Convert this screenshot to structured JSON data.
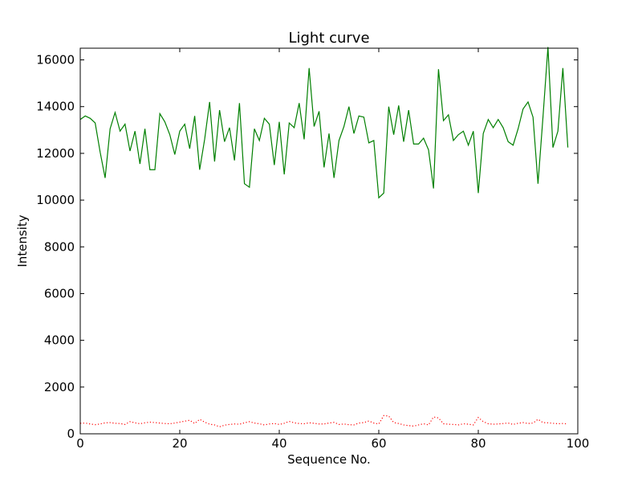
{
  "chart_data": {
    "type": "line",
    "title": "Light curve",
    "xlabel": "Sequence No.",
    "ylabel": "Intensity",
    "xlim": [
      0,
      100
    ],
    "ylim": [
      0,
      16500
    ],
    "xticks": [
      0,
      20,
      40,
      60,
      80,
      100
    ],
    "yticks": [
      0,
      2000,
      4000,
      6000,
      8000,
      10000,
      12000,
      14000,
      16000
    ],
    "grid": false,
    "legend": "none",
    "x": [
      0,
      1,
      2,
      3,
      4,
      5,
      6,
      7,
      8,
      9,
      10,
      11,
      12,
      13,
      14,
      15,
      16,
      17,
      18,
      19,
      20,
      21,
      22,
      23,
      24,
      25,
      26,
      27,
      28,
      29,
      30,
      31,
      32,
      33,
      34,
      35,
      36,
      37,
      38,
      39,
      40,
      41,
      42,
      43,
      44,
      45,
      46,
      47,
      48,
      49,
      50,
      51,
      52,
      53,
      54,
      55,
      56,
      57,
      58,
      59,
      60,
      61,
      62,
      63,
      64,
      65,
      66,
      67,
      68,
      69,
      70,
      71,
      72,
      73,
      74,
      75,
      76,
      77,
      78,
      79,
      80,
      81,
      82,
      83,
      84,
      85,
      86,
      87,
      88,
      89,
      90,
      91,
      92,
      93,
      94,
      95,
      96,
      97,
      98
    ],
    "series": [
      {
        "color": "#007f00",
        "style": "solid",
        "values": [
          13450,
          13600,
          13500,
          13300,
          12050,
          10950,
          13050,
          13750,
          12950,
          13250,
          12100,
          12950,
          11550,
          13050,
          11300,
          11300,
          13700,
          13350,
          12800,
          11950,
          12950,
          13250,
          12200,
          13600,
          11300,
          12600,
          14200,
          11650,
          13850,
          12500,
          13100,
          11700,
          14150,
          10700,
          10550,
          13050,
          12550,
          13500,
          13250,
          11500,
          13350,
          11100,
          13300,
          13100,
          14150,
          12600,
          15650,
          13150,
          13800,
          11400,
          12850,
          10950,
          12550,
          13150,
          14000,
          12850,
          13600,
          13550,
          12450,
          12550,
          10100,
          10300,
          14000,
          12800,
          14050,
          12500,
          13850,
          12400,
          12400,
          12650,
          12150,
          10500,
          15600,
          13400,
          13650,
          12550,
          12800,
          12950,
          12350,
          12950,
          10300,
          12850,
          13450,
          13100,
          13450,
          13100,
          12500,
          12350,
          13050,
          13900,
          14200,
          13550,
          10700,
          13550,
          16550,
          12250,
          12950,
          15650,
          12250
        ]
      },
      {
        "color": "#ff0000",
        "style": "dotted",
        "values": [
          450,
          460,
          420,
          390,
          420,
          470,
          480,
          450,
          440,
          400,
          520,
          470,
          430,
          470,
          500,
          480,
          460,
          440,
          430,
          460,
          500,
          540,
          580,
          440,
          620,
          500,
          410,
          380,
          300,
          370,
          400,
          420,
          410,
          470,
          520,
          460,
          430,
          380,
          420,
          440,
          400,
          450,
          530,
          470,
          440,
          430,
          470,
          450,
          420,
          420,
          460,
          490,
          400,
          420,
          390,
          380,
          460,
          480,
          550,
          460,
          420,
          780,
          760,
          480,
          440,
          380,
          350,
          330,
          380,
          430,
          380,
          720,
          680,
          430,
          410,
          400,
          380,
          430,
          410,
          380,
          700,
          520,
          430,
          410,
          420,
          440,
          460,
          400,
          450,
          480,
          440,
          460,
          620,
          480,
          470,
          450,
          430,
          440,
          420
        ]
      }
    ]
  }
}
